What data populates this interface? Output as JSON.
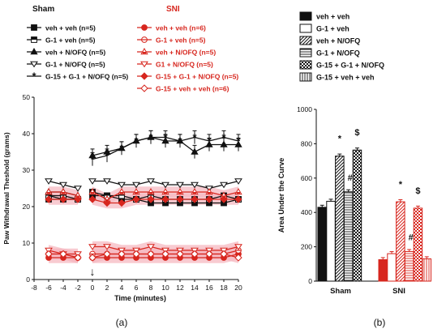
{
  "panel_labels": [
    "(a)",
    "(b)"
  ],
  "colors": {
    "sham": "#111111",
    "sni": "#d7261e",
    "sni_fill": "#f6b9c2"
  },
  "chart_data": [
    {
      "type": "line",
      "xlabel": "Time (minutes)",
      "ylabel": "Paw Withdrawal Theshold (grams)",
      "xlim": [
        -8,
        20
      ],
      "ylim": [
        0,
        50
      ],
      "xticks": [
        -8,
        -6,
        -4,
        -2,
        0,
        2,
        4,
        6,
        8,
        10,
        12,
        14,
        16,
        18,
        20
      ],
      "yticks": [
        0,
        10,
        20,
        30,
        40,
        50
      ],
      "group_titles": [
        "Sham",
        "SNI"
      ],
      "annotations": [
        {
          "text": "↓",
          "x": 0
        }
      ],
      "x": [
        -6,
        -4,
        -2,
        0,
        2,
        4,
        6,
        8,
        10,
        12,
        14,
        16,
        18,
        20
      ],
      "series": [
        {
          "name": "veh + veh (n=5)",
          "group": "Sham",
          "marker": "square-filled",
          "values": [
            22,
            22,
            22,
            23,
            23,
            22,
            22,
            21,
            21,
            21,
            21,
            21,
            21,
            22
          ]
        },
        {
          "name": "G-1 + veh (n=5)",
          "group": "Sham",
          "marker": "square-half",
          "values": [
            23,
            23,
            22,
            24,
            23,
            23,
            22,
            23,
            22,
            22,
            22,
            22,
            23,
            22
          ]
        },
        {
          "name": "veh + N/OFQ (n=5)",
          "group": "Sham",
          "marker": "triangle-filled",
          "values": [
            24,
            24,
            23,
            34,
            35,
            36,
            38,
            39,
            38,
            38,
            35,
            37,
            37,
            37
          ]
        },
        {
          "name": "G-1 + N/OFQ (n=5)",
          "group": "Sham",
          "marker": "triangle-open",
          "values": [
            27,
            26,
            25,
            27,
            27,
            26,
            26,
            27,
            26,
            26,
            26,
            25,
            26,
            27
          ]
        },
        {
          "name": "G-15 + G-1 + N/OFQ (n=5)",
          "group": "Sham",
          "marker": "star",
          "values": [
            23,
            22,
            22,
            33,
            34,
            36,
            38,
            39,
            39,
            38,
            39,
            38,
            39,
            38
          ]
        },
        {
          "name": "veh + veh (n=6)",
          "group": "SNI",
          "marker": "circle-filled",
          "values": [
            6,
            6,
            6,
            6,
            6,
            6,
            6,
            6,
            6,
            6,
            6,
            6,
            6,
            7
          ]
        },
        {
          "name": "G-1 + veh (n=5)",
          "group": "SNI",
          "marker": "circle-half",
          "values": [
            7,
            7,
            6,
            7,
            7,
            7,
            7,
            7,
            7,
            7,
            7,
            7,
            7,
            8
          ]
        },
        {
          "name": "veh + N/OFQ (n=5)",
          "group": "SNI",
          "marker": "triangle-half",
          "values": [
            24,
            24,
            23,
            24,
            22,
            24,
            24,
            24,
            24,
            24,
            24,
            24,
            23,
            24
          ]
        },
        {
          "name": "G1 + N/OFQ (n=5)",
          "group": "SNI",
          "marker": "triangle-open",
          "values": [
            8,
            7,
            7,
            9,
            9,
            8,
            8,
            9,
            8,
            8,
            8,
            8,
            8,
            9
          ]
        },
        {
          "name": "G-15 + G-1 + N/OFQ (n=5)",
          "group": "SNI",
          "marker": "diamond-filled",
          "values": [
            22,
            22,
            22,
            22,
            21,
            21,
            22,
            22,
            22,
            22,
            22,
            22,
            22,
            22
          ]
        },
        {
          "name": "G-15 + veh + veh (n=6)",
          "group": "SNI",
          "marker": "diamond-open",
          "values": [
            7,
            7,
            6,
            6,
            7,
            7,
            7,
            7,
            7,
            7,
            7,
            7,
            7,
            6
          ]
        }
      ]
    },
    {
      "type": "bar",
      "ylabel": "Area Under the Curve",
      "ylim": [
        0,
        1000
      ],
      "yticks": [
        0,
        200,
        400,
        600,
        800,
        1000
      ],
      "categories": [
        "Sham",
        "SNI"
      ],
      "series": [
        {
          "name": "veh + veh",
          "pattern": "solid",
          "values": [
            430,
            125
          ]
        },
        {
          "name": "G-1 + veh",
          "pattern": "open",
          "values": [
            465,
            160
          ]
        },
        {
          "name": "veh + N/OFQ",
          "pattern": "diagonal",
          "values": [
            728,
            462
          ]
        },
        {
          "name": "G-1 + N/OFQ",
          "pattern": "horizontal",
          "values": [
            520,
            172
          ]
        },
        {
          "name": "G-15 + G-1 + N/OFQ",
          "pattern": "checker",
          "values": [
            763,
            425
          ]
        },
        {
          "name": "G-15 + veh + veh",
          "pattern": "vertical",
          "values": [
            null,
            130
          ]
        }
      ],
      "annotations": [
        {
          "text": "*",
          "category": "Sham",
          "series": 2
        },
        {
          "text": "#",
          "category": "Sham",
          "series": 3
        },
        {
          "text": "$",
          "category": "Sham",
          "series": 4
        },
        {
          "text": "*",
          "category": "SNI",
          "series": 2
        },
        {
          "text": "#",
          "category": "SNI",
          "series": 3
        },
        {
          "text": "$",
          "category": "SNI",
          "series": 4
        }
      ]
    }
  ]
}
